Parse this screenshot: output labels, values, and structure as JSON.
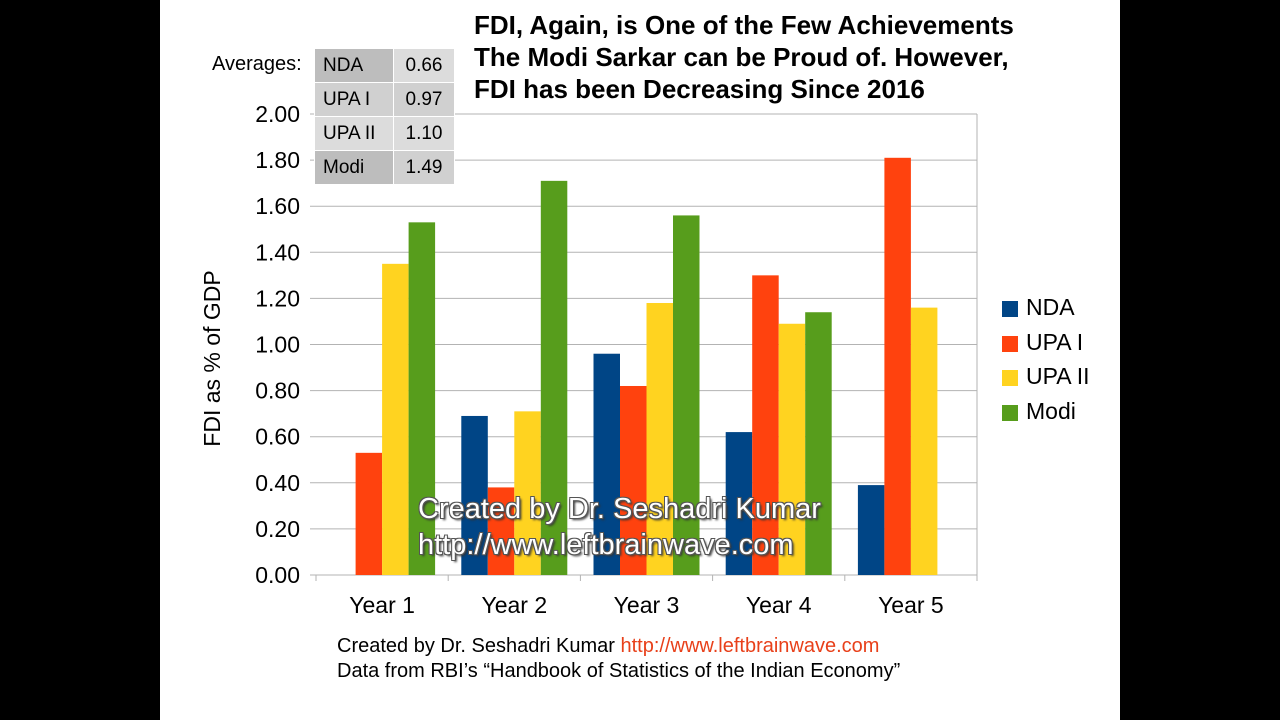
{
  "title_lines": [
    "FDI, Again, is One of the Few Achievements",
    "The Modi Sarkar can be Proud of. However,",
    "FDI has been Decreasing Since 2016"
  ],
  "averages": {
    "label": "Averages:",
    "rows": [
      {
        "name": "NDA",
        "value": "0.66"
      },
      {
        "name": "UPA I",
        "value": "0.97"
      },
      {
        "name": "UPA II",
        "value": "1.10"
      },
      {
        "name": "Modi",
        "value": "1.49"
      }
    ]
  },
  "watermark": {
    "line1": "Created by Dr. Seshadri Kumar",
    "line2": "http://www.leftbrainwave.com"
  },
  "footer": {
    "credit_text": "Created by Dr. Seshadri Kumar",
    "credit_link": "http://www.leftbrainwave.com",
    "source": "Data from RBI’s “Handbook of Statistics of the Indian Economy”"
  },
  "colors": {
    "NDA": "#004586",
    "UPA I": "#ff420e",
    "UPA II": "#ffd320",
    "Modi": "#579d1c",
    "grid": "#b3b3b3"
  },
  "chart_data": {
    "type": "bar",
    "title": "",
    "xlabel": "",
    "ylabel": "FDI as % of GDP",
    "ylim": [
      0,
      2.0
    ],
    "yticks": [
      "0.00",
      "0.20",
      "0.40",
      "0.60",
      "0.80",
      "1.00",
      "1.20",
      "1.40",
      "1.60",
      "1.80",
      "2.00"
    ],
    "categories": [
      "Year 1",
      "Year 2",
      "Year 3",
      "Year 4",
      "Year 5"
    ],
    "grid": true,
    "legend_position": "right",
    "series": [
      {
        "name": "NDA",
        "values": [
          0,
          0.69,
          0.96,
          0.62,
          0.39
        ]
      },
      {
        "name": "UPA I",
        "values": [
          0.53,
          0.38,
          0.82,
          1.3,
          1.81
        ]
      },
      {
        "name": "UPA II",
        "values": [
          1.35,
          0.71,
          1.18,
          1.09,
          1.16
        ]
      },
      {
        "name": "Modi",
        "values": [
          1.53,
          1.71,
          1.56,
          1.14,
          null
        ]
      }
    ]
  }
}
